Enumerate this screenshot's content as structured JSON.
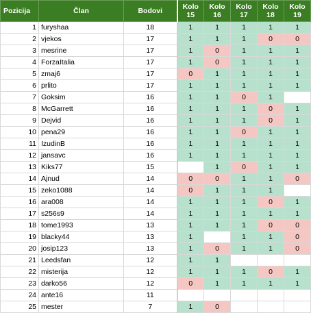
{
  "headers": {
    "pos": "Pozicija",
    "name": "Član",
    "pts": "Bodovi",
    "kolo": "Kolo"
  },
  "rounds": [
    "15",
    "16",
    "17",
    "18",
    "19"
  ],
  "rows": [
    {
      "pos": "1",
      "name": "furyshaa",
      "pts": "18",
      "s": [
        "1",
        "1",
        "1",
        "1",
        "1"
      ]
    },
    {
      "pos": "2",
      "name": "vjekos",
      "pts": "17",
      "s": [
        "1",
        "1",
        "1",
        "0",
        "0"
      ]
    },
    {
      "pos": "3",
      "name": "mesrine",
      "pts": "17",
      "s": [
        "1",
        "0",
        "1",
        "1",
        "1"
      ]
    },
    {
      "pos": "4",
      "name": "ForzaItalia",
      "pts": "17",
      "s": [
        "1",
        "0",
        "1",
        "1",
        "1"
      ]
    },
    {
      "pos": "5",
      "name": "zmaj6",
      "pts": "17",
      "s": [
        "0",
        "1",
        "1",
        "1",
        "1"
      ]
    },
    {
      "pos": "6",
      "name": "prlito",
      "pts": "17",
      "s": [
        "1",
        "1",
        "1",
        "1",
        "1"
      ]
    },
    {
      "pos": "7",
      "name": "Goksim",
      "pts": "16",
      "s": [
        "1",
        "1",
        "0",
        "1",
        ""
      ]
    },
    {
      "pos": "8",
      "name": "McGarrett",
      "pts": "16",
      "s": [
        "1",
        "1",
        "1",
        "0",
        "1"
      ]
    },
    {
      "pos": "9",
      "name": "Dejvid",
      "pts": "16",
      "s": [
        "1",
        "1",
        "1",
        "0",
        "1"
      ]
    },
    {
      "pos": "10",
      "name": "pena29",
      "pts": "16",
      "s": [
        "1",
        "1",
        "0",
        "1",
        "1"
      ]
    },
    {
      "pos": "11",
      "name": "IzudinB",
      "pts": "16",
      "s": [
        "1",
        "1",
        "1",
        "1",
        "1"
      ]
    },
    {
      "pos": "12",
      "name": "jansavc",
      "pts": "16",
      "s": [
        "1",
        "1",
        "1",
        "1",
        "1"
      ]
    },
    {
      "pos": "13",
      "name": "Kiks77",
      "pts": "15",
      "s": [
        "",
        "1",
        "0",
        "1",
        "1"
      ]
    },
    {
      "pos": "14",
      "name": "Ajnud",
      "pts": "14",
      "s": [
        "0",
        "0",
        "1",
        "1",
        "0"
      ]
    },
    {
      "pos": "15",
      "name": "zeko1088",
      "pts": "14",
      "s": [
        "0",
        "1",
        "1",
        "1",
        ""
      ]
    },
    {
      "pos": "16",
      "name": "ara008",
      "pts": "14",
      "s": [
        "1",
        "1",
        "1",
        "0",
        "1"
      ]
    },
    {
      "pos": "17",
      "name": "s256s9",
      "pts": "14",
      "s": [
        "1",
        "1",
        "1",
        "1",
        "1"
      ]
    },
    {
      "pos": "18",
      "name": "tome1993",
      "pts": "13",
      "s": [
        "1",
        "1",
        "1",
        "0",
        "0"
      ]
    },
    {
      "pos": "19",
      "name": "blacky44",
      "pts": "13",
      "s": [
        "1",
        "",
        "1",
        "1",
        "0"
      ]
    },
    {
      "pos": "20",
      "name": "josip123",
      "pts": "13",
      "s": [
        "1",
        "0",
        "1",
        "1",
        "0"
      ]
    },
    {
      "pos": "21",
      "name": "Leedsfan",
      "pts": "12",
      "s": [
        "1",
        "1",
        "",
        "",
        ""
      ]
    },
    {
      "pos": "22",
      "name": "misterija",
      "pts": "12",
      "s": [
        "1",
        "1",
        "1",
        "0",
        "1"
      ]
    },
    {
      "pos": "23",
      "name": "darko56",
      "pts": "12",
      "s": [
        "0",
        "1",
        "1",
        "1",
        "1"
      ]
    },
    {
      "pos": "24",
      "name": "ante16",
      "pts": "11",
      "s": [
        "",
        "",
        "",
        "",
        ""
      ]
    },
    {
      "pos": "25",
      "name": "mester",
      "pts": "7",
      "s": [
        "1",
        "0",
        "",
        "",
        ""
      ]
    }
  ],
  "colors": {
    "header_bg": "#3b7d23",
    "win": "#b7e1cd",
    "loss": "#f4c7c3"
  }
}
